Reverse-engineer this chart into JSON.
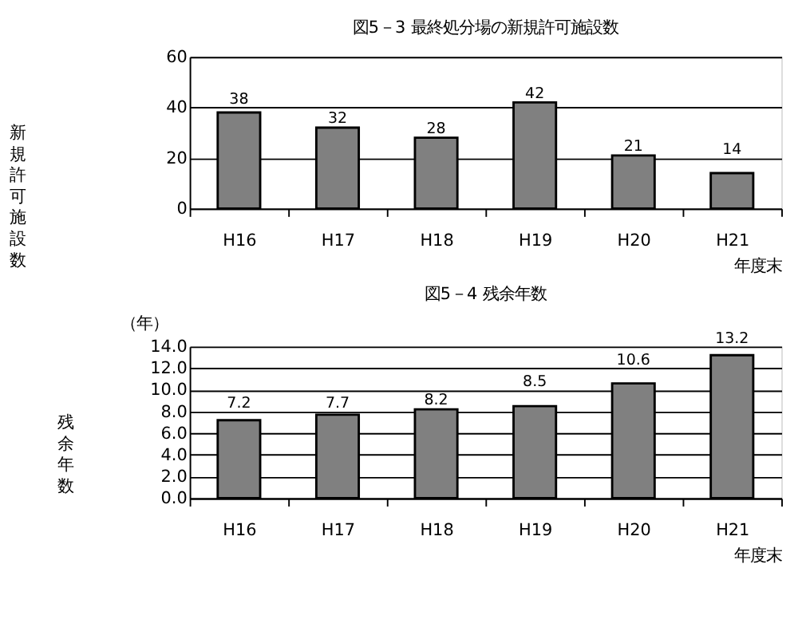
{
  "chart_data": [
    {
      "type": "bar",
      "title": "図5－3  最終処分場の新規許可施設数",
      "ylabel": "新規許可施設数",
      "xlabel": "年度末",
      "categories": [
        "H16",
        "H17",
        "H18",
        "H19",
        "H20",
        "H21"
      ],
      "values": [
        38,
        32,
        28,
        42,
        21,
        14
      ],
      "color": "#808080",
      "ylim": [
        0,
        60
      ],
      "yticks": [
        0,
        20,
        40,
        60
      ],
      "grid": "y",
      "data_labels": true
    },
    {
      "type": "bar",
      "title": "図5－4  残余年数",
      "ylabel": "残余年数",
      "xlabel": "年度末",
      "annotations": [
        "（年）"
      ],
      "categories": [
        "H16",
        "H17",
        "H18",
        "H19",
        "H20",
        "H21"
      ],
      "values": [
        7.2,
        7.7,
        8.2,
        8.5,
        10.6,
        13.2
      ],
      "color": "#808080",
      "ylim": [
        0,
        14
      ],
      "yticks": [
        {
          "value": 0,
          "label": "0.0"
        },
        {
          "value": 2,
          "label": "2.0"
        },
        {
          "value": 4,
          "label": "4.0"
        },
        {
          "value": 6,
          "label": "6.0"
        },
        {
          "value": 8,
          "label": "8.0"
        },
        {
          "value": 10,
          "label": "10.0"
        },
        {
          "value": 12,
          "label": "12.0"
        },
        {
          "value": 14,
          "label": "14.0"
        }
      ],
      "grid": "y",
      "data_labels": true
    }
  ]
}
